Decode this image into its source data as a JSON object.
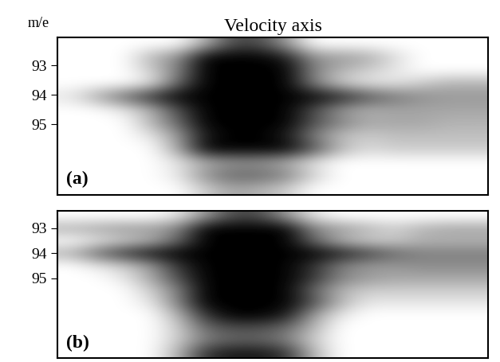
{
  "chart_data": [
    {
      "type": "heatmap",
      "title": "Velocity axis",
      "ylabel": "m/e",
      "annotation": "(a)",
      "ylim": [
        97.4,
        92.05
      ],
      "yticks": [
        93,
        94,
        95
      ],
      "tick_labels": "y",
      "color_range": [
        0,
        1
      ],
      "cells": [
        [
          0,
          0,
          0,
          0,
          0,
          0.3,
          0.7,
          0.7,
          0.4,
          0,
          0,
          0,
          0,
          0,
          0,
          0
        ],
        [
          0,
          0,
          0,
          0.3,
          0.45,
          1,
          1,
          1,
          0.9,
          0.45,
          0.4,
          0.35,
          0.15,
          0,
          0,
          0
        ],
        [
          0,
          0,
          0,
          0.2,
          0.5,
          1,
          1,
          1,
          1,
          0.5,
          0.3,
          0.2,
          0.1,
          0,
          0,
          0
        ],
        [
          0,
          0,
          0,
          0.1,
          0.6,
          1,
          1,
          1,
          1,
          0.5,
          0.2,
          0.1,
          0.1,
          0.2,
          0.3,
          0.3
        ],
        [
          0.1,
          0.35,
          0.6,
          0.85,
          1,
          1,
          1,
          1,
          1,
          1,
          0.9,
          0.7,
          0.55,
          0.45,
          0.4,
          0.4
        ],
        [
          0,
          0,
          0.1,
          0.3,
          0.7,
          1,
          1,
          1,
          1,
          0.7,
          0.4,
          0.3,
          0.35,
          0.35,
          0.35,
          0.35
        ],
        [
          0,
          0,
          0,
          0.3,
          0.6,
          1,
          1,
          1,
          1,
          0.7,
          0.5,
          0.35,
          0.35,
          0.35,
          0.3,
          0.3
        ],
        [
          0,
          0,
          0,
          0.1,
          0.4,
          0.9,
          1,
          1,
          0.9,
          0.5,
          0.25,
          0.2,
          0.25,
          0.25,
          0.25,
          0.25
        ],
        [
          0,
          0,
          0,
          0,
          0.35,
          1,
          1,
          1,
          1,
          0.7,
          0.3,
          0.15,
          0.2,
          0.2,
          0.2,
          0.2
        ],
        [
          0,
          0,
          0,
          0,
          0.1,
          0.3,
          0.4,
          0.4,
          0.3,
          0.1,
          0,
          0,
          0,
          0,
          0,
          0
        ],
        [
          0,
          0,
          0,
          0,
          0.1,
          0.45,
          0.6,
          0.6,
          0.5,
          0.2,
          0,
          0,
          0,
          0,
          0,
          0
        ],
        [
          0,
          0,
          0,
          0,
          0,
          0.2,
          0.35,
          0.3,
          0.2,
          0,
          0,
          0,
          0,
          0,
          0,
          0
        ]
      ]
    },
    {
      "type": "heatmap",
      "annotation": "(b)",
      "ylim": [
        98.2,
        92.3
      ],
      "yticks": [
        93,
        94,
        95
      ],
      "tick_labels": "y",
      "color_range": [
        0,
        1
      ],
      "cells": [
        [
          0,
          0,
          0,
          0,
          0.1,
          0.4,
          0.7,
          0.7,
          0.4,
          0.1,
          0,
          0,
          0,
          0,
          0,
          0
        ],
        [
          0.3,
          0.35,
          0.4,
          0.4,
          0.5,
          1,
          1,
          1,
          1,
          0.5,
          0.4,
          0.3,
          0.2,
          0.3,
          0.35,
          0.35
        ],
        [
          0,
          0.1,
          0.2,
          0.3,
          0.6,
          1,
          1,
          1,
          1,
          0.6,
          0.3,
          0.2,
          0.2,
          0.3,
          0.3,
          0.3
        ],
        [
          0.3,
          0.6,
          0.8,
          0.95,
          1,
          1,
          1,
          1,
          1,
          1,
          0.9,
          0.75,
          0.6,
          0.5,
          0.5,
          0.5
        ],
        [
          0,
          0.1,
          0.2,
          0.4,
          0.8,
          1,
          1,
          1,
          1,
          0.8,
          0.5,
          0.4,
          0.4,
          0.45,
          0.45,
          0.45
        ],
        [
          0,
          0,
          0.1,
          0.35,
          0.7,
          1,
          1,
          1,
          1,
          0.8,
          0.5,
          0.4,
          0.35,
          0.35,
          0.35,
          0.35
        ],
        [
          0,
          0,
          0,
          0.2,
          0.5,
          1,
          1,
          1,
          1,
          0.6,
          0.3,
          0.2,
          0.2,
          0.2,
          0.2,
          0.2
        ],
        [
          0,
          0,
          0,
          0.1,
          0.5,
          1,
          1,
          1,
          1,
          0.7,
          0.3,
          0.1,
          0.1,
          0.1,
          0.1,
          0.1
        ],
        [
          0,
          0,
          0,
          0,
          0.3,
          0.8,
          1,
          1,
          0.9,
          0.4,
          0.1,
          0,
          0,
          0,
          0,
          0
        ],
        [
          0,
          0,
          0,
          0,
          0.2,
          0.6,
          0.7,
          0.7,
          0.6,
          0.3,
          0,
          0,
          0,
          0,
          0,
          0
        ],
        [
          0,
          0,
          0,
          0,
          0.2,
          0.5,
          0.6,
          0.6,
          0.5,
          0.2,
          0,
          0,
          0,
          0,
          0,
          0
        ],
        [
          0,
          0,
          0,
          0,
          0.3,
          0.8,
          0.9,
          0.9,
          0.8,
          0.3,
          0,
          0,
          0,
          0,
          0,
          0
        ]
      ]
    }
  ]
}
